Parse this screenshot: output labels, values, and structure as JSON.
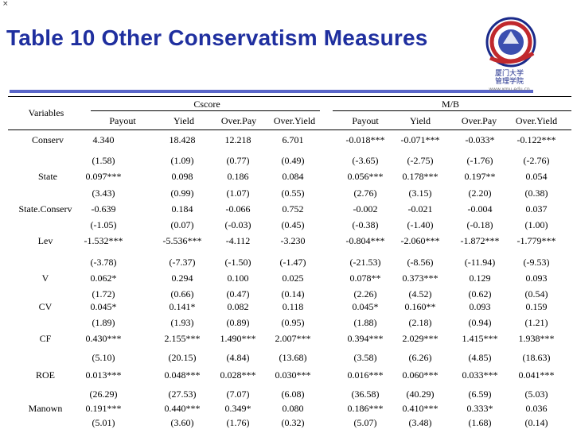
{
  "corner_mark": "×",
  "title": "Table 10 Other Conservatism Measures",
  "logo": {
    "name_cn": "厦门大学",
    "name_site": "管理学院",
    "url": "www.xmu.edu.cn"
  },
  "header": {
    "variables": "Variables",
    "group1": "Cscore",
    "group2": "M/B",
    "columns": [
      "Payout",
      "Yield",
      "Over.Pay",
      "Over.Yield",
      "Payout",
      "Yield",
      "Over.Pay",
      "Over.Yield"
    ]
  },
  "labels": [
    "Conserv",
    "State",
    "State.Conserv",
    "Lev",
    "V",
    "CV",
    "CF",
    "ROE",
    "Manown"
  ],
  "rows": [
    [
      "4.340",
      "18.428",
      "12.218",
      "6.701",
      "-0.018***",
      "-0.071***",
      "-0.033*",
      "-0.122***"
    ],
    [
      "(1.58)",
      "(1.09)",
      "(0.77)",
      "(0.49)",
      "(-3.65)",
      "(-2.75)",
      "(-1.76)",
      "(-2.76)"
    ],
    [
      "0.097***",
      "0.098",
      "0.186",
      "0.084",
      "0.056***",
      "0.178***",
      "0.197**",
      "0.054"
    ],
    [
      "(3.43)",
      "(0.99)",
      "(1.07)",
      "(0.55)",
      "(2.76)",
      "(3.15)",
      "(2.20)",
      "(0.38)"
    ],
    [
      "-0.639",
      "0.184",
      "-0.066",
      "0.752",
      "-0.002",
      "-0.021",
      "-0.004",
      "0.037"
    ],
    [
      "(-1.05)",
      "(0.07)",
      "(-0.03)",
      "(0.45)",
      "(-0.38)",
      "(-1.40)",
      "(-0.18)",
      "(1.00)"
    ],
    [
      "-1.532***",
      "-5.536***",
      "-4.112",
      "-3.230",
      "-0.804***",
      "-2.060***",
      "-1.872***",
      "-1.779***"
    ],
    [
      "(-3.78)",
      "(-7.37)",
      "(-1.50)",
      "(-1.47)",
      "(-21.53)",
      "(-8.56)",
      "(-11.94)",
      "(-9.53)"
    ],
    [
      "0.062*",
      "0.294",
      "0.100",
      "0.025",
      "0.078**",
      "0.373***",
      "0.129",
      "0.093"
    ],
    [
      "(1.72)",
      "(0.66)",
      "(0.47)",
      "(0.14)",
      "(2.26)",
      "(4.52)",
      "(0.62)",
      "(0.54)"
    ],
    [
      "0.045*",
      "0.141*",
      "0.082",
      "0.118",
      "0.045*",
      "0.160**",
      "0.093",
      "0.159"
    ],
    [
      "(1.89)",
      "(1.93)",
      "(0.89)",
      "(0.95)",
      "(1.88)",
      "(2.18)",
      "(0.94)",
      "(1.21)"
    ],
    [
      "0.430***",
      "2.155***",
      "1.490***",
      "2.007***",
      "0.394***",
      "2.029***",
      "1.415***",
      "1.938***"
    ],
    [
      "(5.10)",
      "(20.15)",
      "(4.84)",
      "(13.68)",
      "(3.58)",
      "(6.26)",
      "(4.85)",
      "(18.63)"
    ],
    [
      "0.013***",
      "0.048***",
      "0.028***",
      "0.030***",
      "0.016***",
      "0.060***",
      "0.033***",
      "0.041***"
    ],
    [
      "(26.29)",
      "(27.53)",
      "(7.07)",
      "(6.08)",
      "(36.58)",
      "(40.29)",
      "(6.59)",
      "(5.03)"
    ],
    [
      "0.191***",
      "0.440***",
      "0.349*",
      "0.080",
      "0.186***",
      "0.410***",
      "0.333*",
      "0.036"
    ],
    [
      "(5.01)",
      "(3.60)",
      "(1.76)",
      "(0.32)",
      "(5.07)",
      "(3.48)",
      "(1.68)",
      "(0.14)"
    ]
  ]
}
